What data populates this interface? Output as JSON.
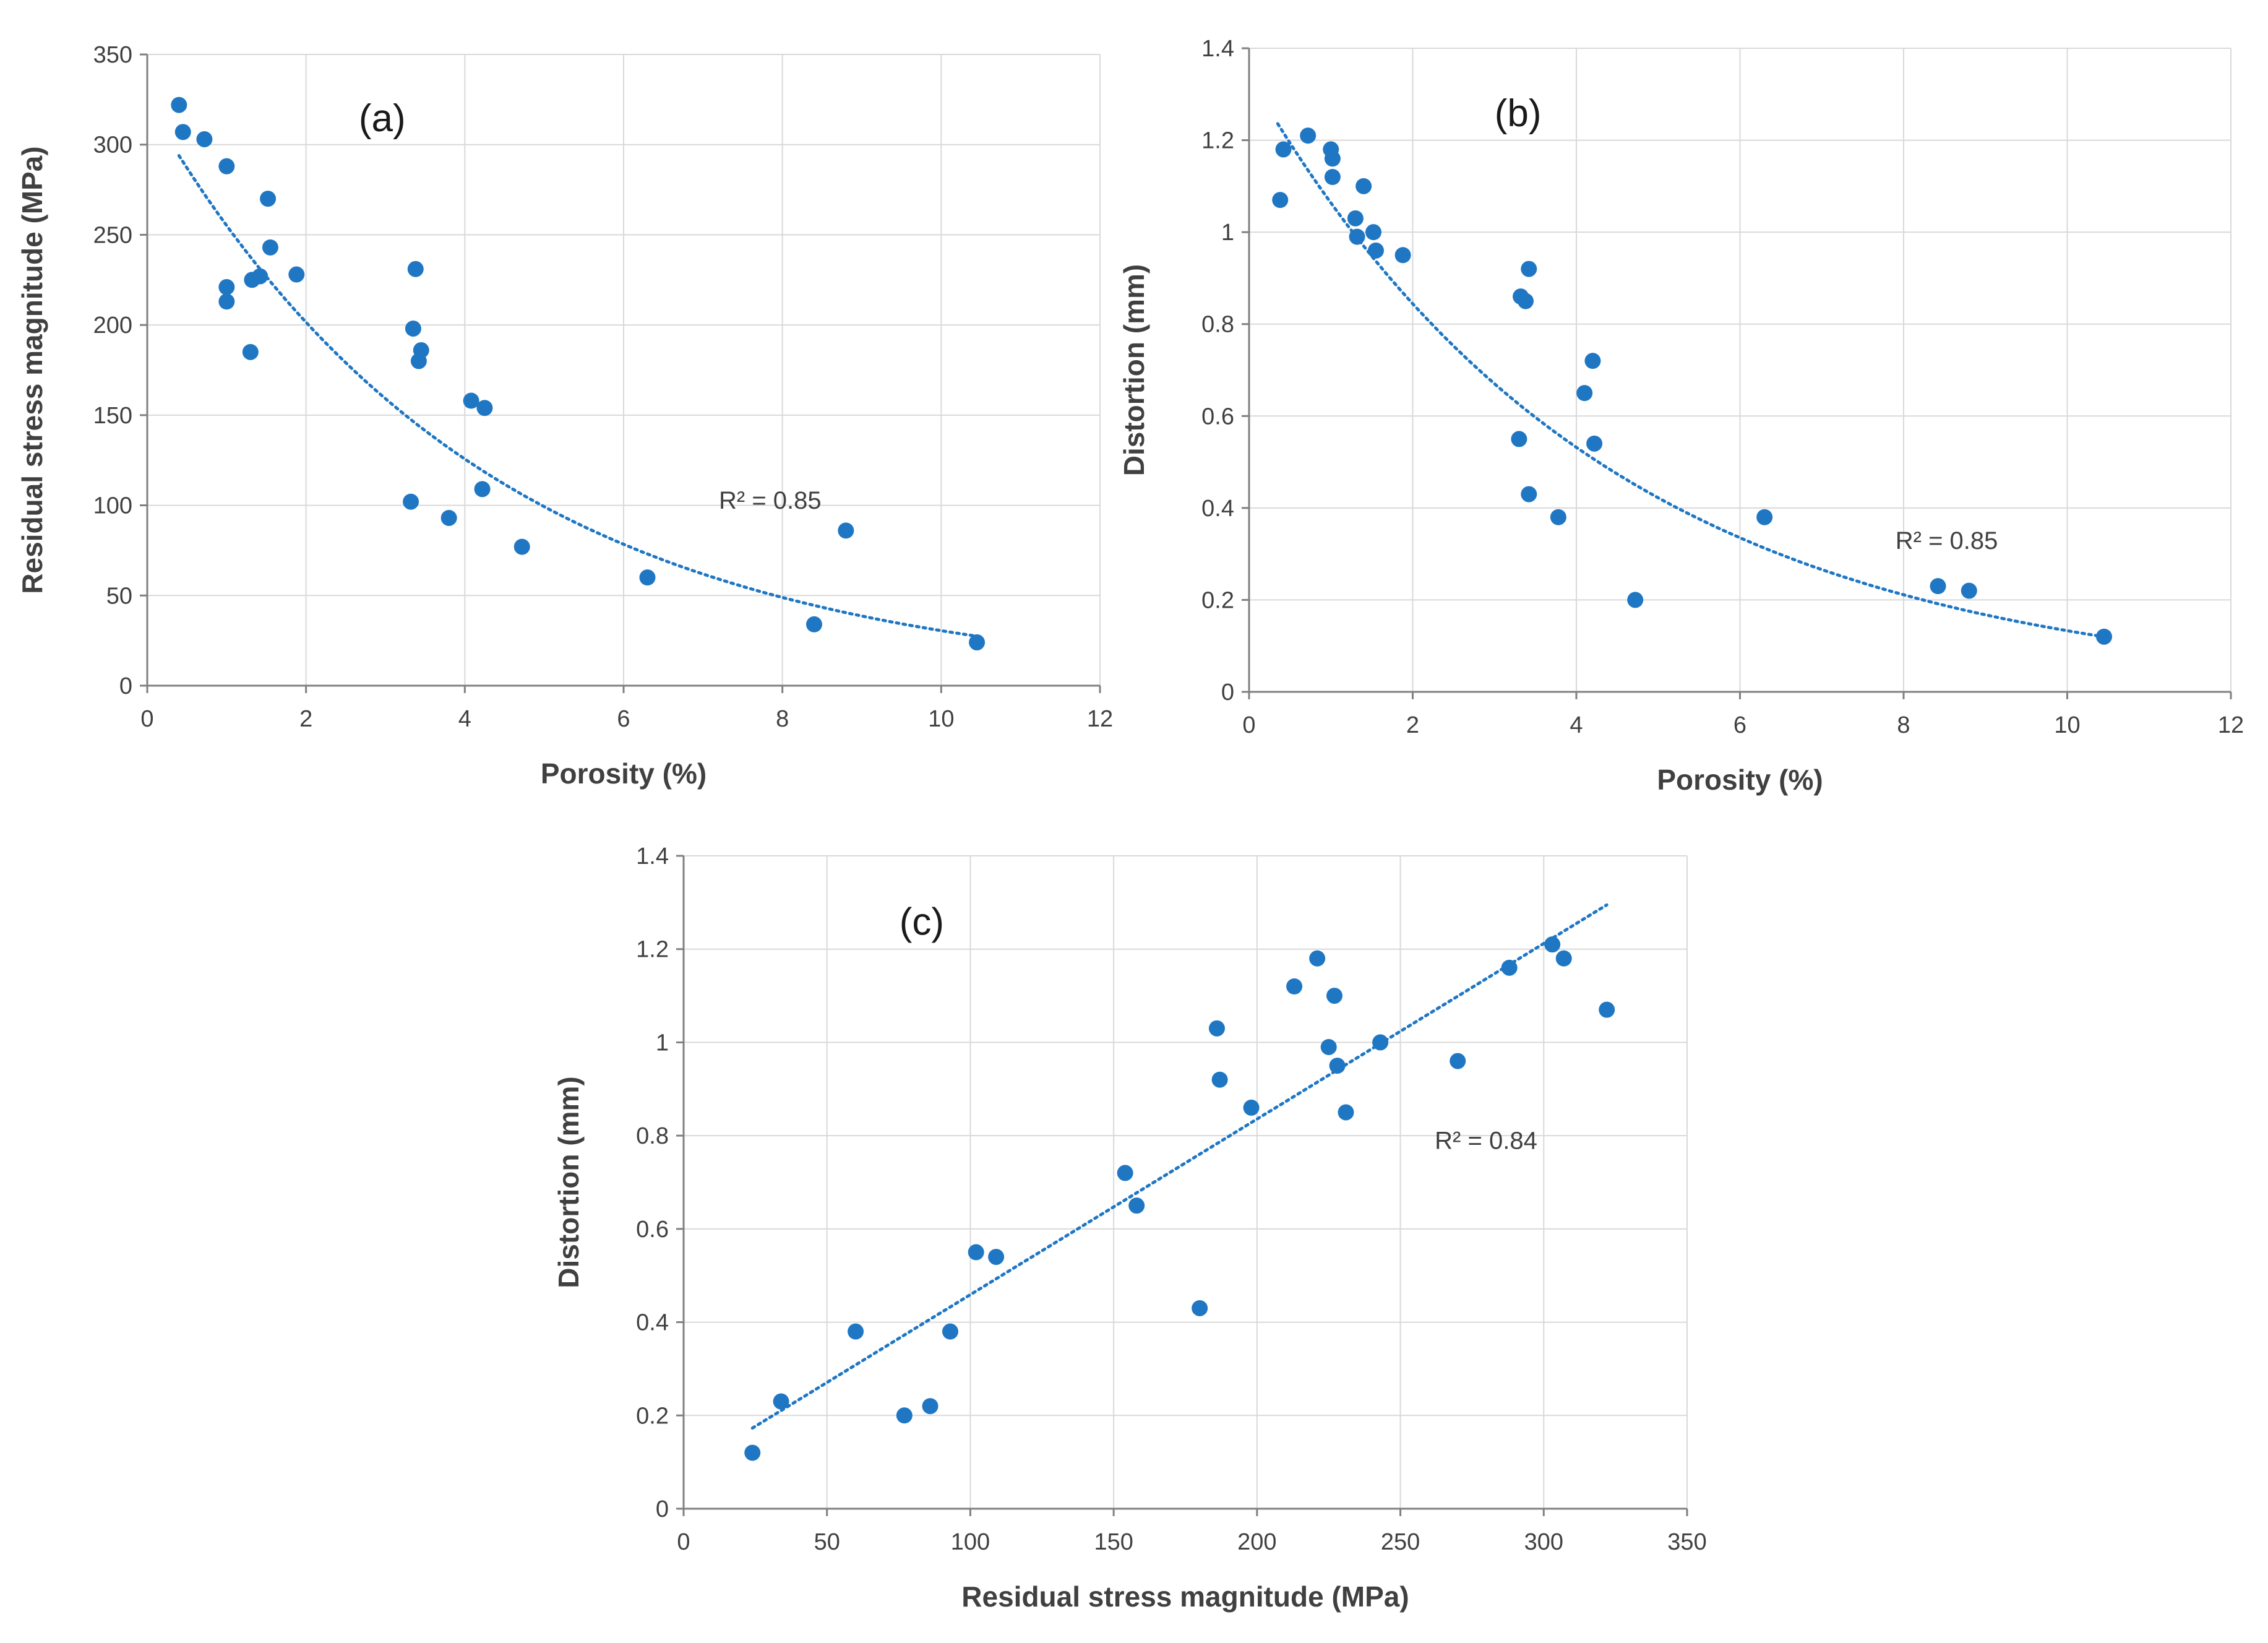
{
  "colors": {
    "point": "#1f77c4",
    "trend": "#1f77c4",
    "grid": "#d9d9d9",
    "axis": "#808080",
    "text": "#404040"
  },
  "chart_data": [
    {
      "id": "a",
      "type": "scatter",
      "title": "(a)",
      "xlabel": "Porosity (%)",
      "ylabel": "Residual stress magnitude (MPa)",
      "xlim": [
        0,
        12
      ],
      "ylim": [
        0,
        350
      ],
      "xticks": [
        0,
        2,
        4,
        6,
        8,
        10,
        12
      ],
      "yticks": [
        0,
        50,
        100,
        150,
        200,
        250,
        300,
        350
      ],
      "xtick_labels": [
        "0",
        "2",
        "4",
        "6",
        "8",
        "10",
        "12"
      ],
      "ytick_labels": [
        "0",
        "50",
        "100",
        "150",
        "200",
        "250",
        "300",
        "350"
      ],
      "grid": true,
      "annotation": "R² = 0.85",
      "annotation_at": [
        7.2,
        103
      ],
      "trendline": {
        "type": "exponential",
        "a": 323,
        "b": -0.236,
        "x_range": [
          0.4,
          10.4
        ]
      },
      "x": [
        0.4,
        0.45,
        0.72,
        1.0,
        1.0,
        1.0,
        1.3,
        1.32,
        1.42,
        1.52,
        1.55,
        1.88,
        3.32,
        3.35,
        3.38,
        3.42,
        3.45,
        3.8,
        4.08,
        4.22,
        4.25,
        4.72,
        6.3,
        8.4,
        8.8,
        10.45
      ],
      "y": [
        322,
        307,
        303,
        288,
        221,
        213,
        185,
        225,
        227,
        270,
        243,
        228,
        102,
        198,
        231,
        180,
        186,
        93,
        158,
        109,
        154,
        77,
        60,
        34,
        86,
        24
      ]
    },
    {
      "id": "b",
      "type": "scatter",
      "title": "(b)",
      "xlabel": "Porosity (%)",
      "ylabel": "Distortion (mm)",
      "xlim": [
        0,
        12
      ],
      "ylim": [
        0,
        1.4
      ],
      "xticks": [
        0,
        2,
        4,
        6,
        8,
        10,
        12
      ],
      "yticks": [
        0,
        0.2,
        0.4,
        0.6,
        0.8,
        1.0,
        1.2,
        1.4
      ],
      "xtick_labels": [
        "0",
        "2",
        "4",
        "6",
        "8",
        "10",
        "12"
      ],
      "ytick_labels": [
        "0",
        "0.2",
        "0.4",
        "0.6",
        "0.8",
        "1",
        "1.2",
        "1.4"
      ],
      "grid": true,
      "annotation": "R² = 0.85",
      "annotation_at": [
        7.9,
        0.33
      ],
      "trendline": {
        "type": "exponential",
        "a": 1.34,
        "b": -0.231,
        "x_range": [
          0.35,
          10.4
        ]
      },
      "x": [
        0.38,
        0.42,
        0.72,
        1.0,
        1.02,
        1.02,
        1.3,
        1.32,
        1.4,
        1.52,
        1.55,
        1.88,
        3.3,
        3.32,
        3.38,
        3.42,
        3.42,
        3.78,
        4.1,
        4.2,
        4.22,
        4.72,
        6.3,
        8.42,
        8.8,
        10.45
      ],
      "y": [
        1.07,
        1.18,
        1.21,
        1.18,
        1.16,
        1.12,
        1.03,
        0.99,
        1.1,
        1.0,
        0.96,
        0.95,
        0.55,
        0.86,
        0.85,
        0.92,
        0.43,
        0.38,
        0.65,
        0.72,
        0.54,
        0.2,
        0.38,
        0.23,
        0.22,
        0.12
      ]
    },
    {
      "id": "c",
      "type": "scatter",
      "title": "(c)",
      "xlabel": "Residual stress magnitude (MPa)",
      "ylabel": "Distortion (mm)",
      "xlim": [
        0,
        350
      ],
      "ylim": [
        0,
        1.4
      ],
      "xticks": [
        0,
        50,
        100,
        150,
        200,
        250,
        300,
        350
      ],
      "yticks": [
        0,
        0.2,
        0.4,
        0.6,
        0.8,
        1.0,
        1.2,
        1.4
      ],
      "xtick_labels": [
        "0",
        "50",
        "100",
        "150",
        "200",
        "250",
        "300",
        "350"
      ],
      "ytick_labels": [
        "0",
        "0.2",
        "0.4",
        "0.6",
        "0.8",
        "1",
        "1.2",
        "1.4"
      ],
      "grid": true,
      "annotation": "R² = 0.84",
      "annotation_at": [
        262,
        0.79
      ],
      "trendline": {
        "type": "linear",
        "m": 0.003765,
        "c": 0.0825,
        "x_range": [
          24,
          322
        ]
      },
      "x": [
        24,
        34,
        60,
        77,
        86,
        93,
        102,
        109,
        154,
        158,
        180,
        186,
        187,
        198,
        213,
        221,
        225,
        227,
        228,
        231,
        243,
        270,
        288,
        303,
        307,
        322
      ],
      "y": [
        0.12,
        0.23,
        0.38,
        0.2,
        0.22,
        0.38,
        0.55,
        0.54,
        0.72,
        0.65,
        0.43,
        1.03,
        0.92,
        0.86,
        1.12,
        1.18,
        0.99,
        1.1,
        0.95,
        0.85,
        1.0,
        0.96,
        1.16,
        1.21,
        1.18,
        1.07
      ]
    }
  ]
}
